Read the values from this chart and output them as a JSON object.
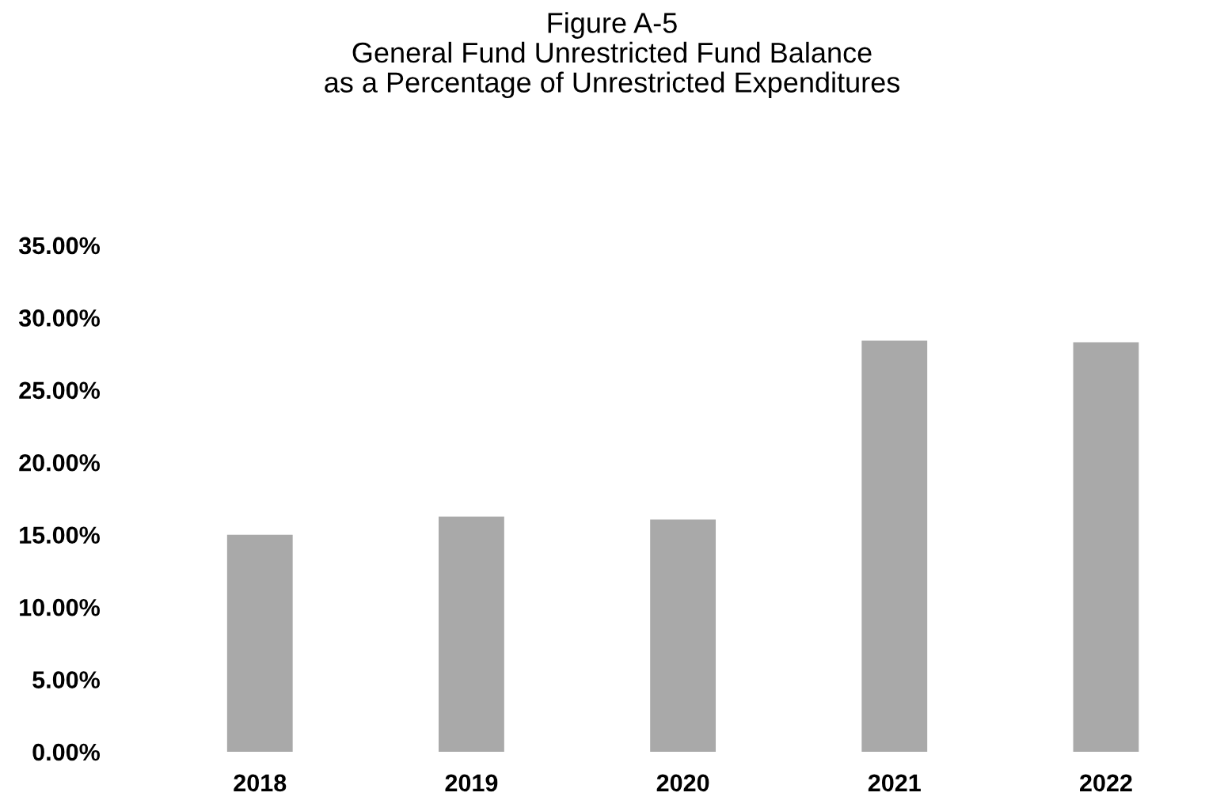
{
  "chart_data": {
    "type": "bar",
    "title": "Figure A-5\nGeneral Fund Unrestricted Fund Balance\nas a Percentage of Unrestricted Expenditures",
    "categories": [
      "2018",
      "2019",
      "2020",
      "2021",
      "2022"
    ],
    "values": [
      15.0,
      16.25,
      16.05,
      28.4,
      28.3
    ],
    "color": "#a9a9a9",
    "ylim": [
      0,
      35
    ],
    "yticks": [
      {
        "value": 0,
        "label": "0.00%"
      },
      {
        "value": 5,
        "label": "5.00%"
      },
      {
        "value": 10,
        "label": "10.00%"
      },
      {
        "value": 15,
        "label": "15.00%"
      },
      {
        "value": 20,
        "label": "20.00%"
      },
      {
        "value": 25,
        "label": "25.00%"
      },
      {
        "value": 30,
        "label": "30.00%"
      },
      {
        "value": 35,
        "label": "35.00%"
      }
    ],
    "grid": false,
    "legend": false
  }
}
